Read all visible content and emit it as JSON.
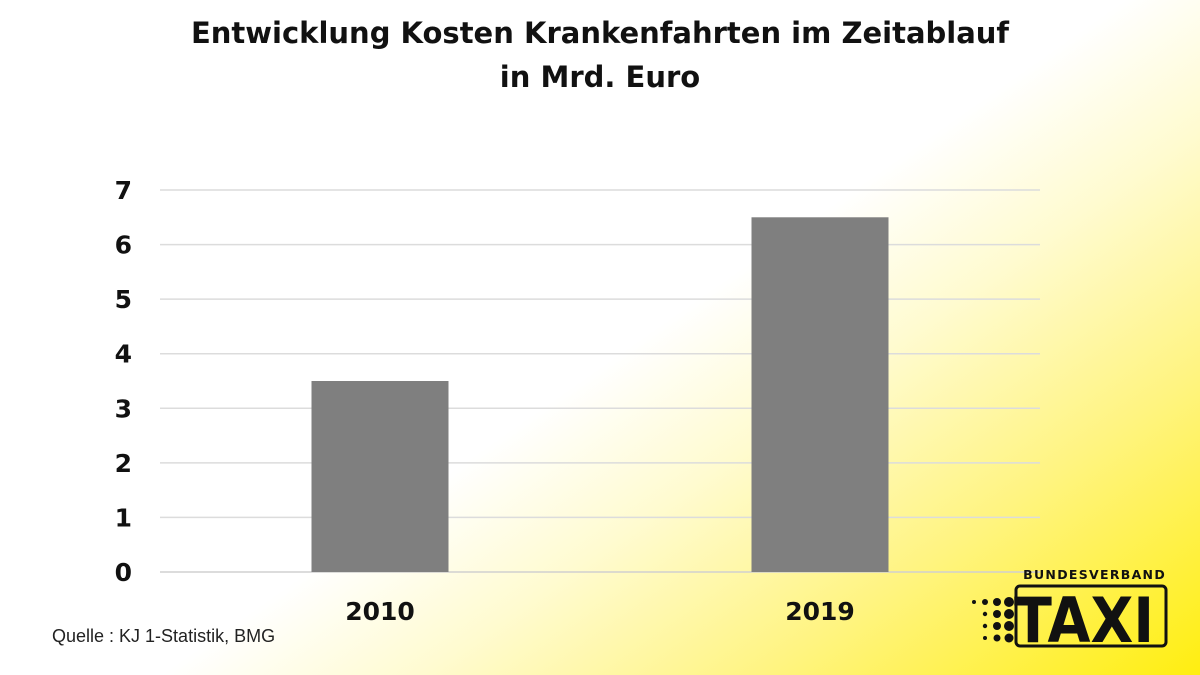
{
  "chart_data": {
    "type": "bar",
    "title": "Entwicklung Kosten Krankenfahrten im Zeitablauf",
    "subtitle": "in Mrd. Euro",
    "categories": [
      "2010",
      "2019"
    ],
    "values": [
      3.5,
      6.5
    ],
    "ylim": [
      0,
      7
    ],
    "yticks": [
      0,
      1,
      2,
      3,
      4,
      5,
      6,
      7
    ],
    "grid": true,
    "bar_color": "#7f7f7f",
    "xlabel": "",
    "ylabel": ""
  },
  "source": "Quelle : KJ 1-Statistik, BMG",
  "logo": {
    "top": "BUNDESVERBAND",
    "main": "TAXI"
  }
}
